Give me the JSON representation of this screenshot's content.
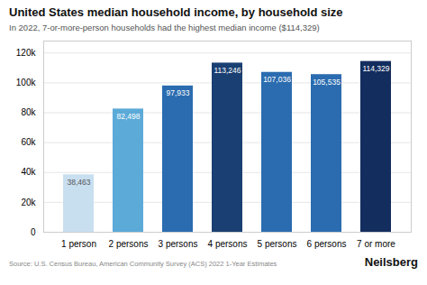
{
  "chart_data": {
    "type": "bar",
    "title": "United States median household income, by household size",
    "subtitle": "In 2022, 7-or-more-person households had the highest median income ($114,329)",
    "categories": [
      "1 person",
      "2 persons",
      "3 persons",
      "4 persons",
      "5 persons",
      "6 persons",
      "7 or more"
    ],
    "values": [
      38463,
      82498,
      97933,
      113246,
      107036,
      105535,
      114329
    ],
    "value_labels": [
      "38,463",
      "82,498",
      "97,933",
      "113,246",
      "107,036",
      "105,535",
      "114,329"
    ],
    "colors": [
      "#c8dff0",
      "#5baad8",
      "#2b6cb0",
      "#1a3f72",
      "#2b6cb0",
      "#2b6cb0",
      "#132d5e"
    ],
    "data_labels": true,
    "ylim": [
      0,
      128000
    ],
    "yticks": [
      0,
      {
        "value": 20000,
        "label": "20k"
      },
      {
        "value": 40000,
        "label": "40k"
      },
      {
        "value": 60000,
        "label": "60k"
      },
      {
        "value": 80000,
        "label": "80k"
      },
      {
        "value": 100000,
        "label": "100k"
      },
      {
        "value": 120000,
        "label": "120k"
      }
    ],
    "grid": true,
    "caption": "Source: U.S. Census Bureau, American Community Survey (ACS) 2022 1-Year Estimates",
    "annotations": [
      "Neilsberg"
    ]
  }
}
